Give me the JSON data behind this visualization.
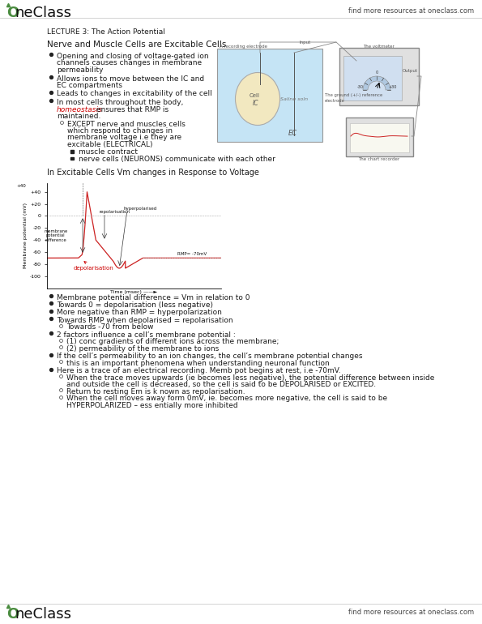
{
  "bg_color": "#ffffff",
  "header_right_text": "find more resources at oneclass.com",
  "footer_right_text": "find more resources at oneclass.com",
  "lecture_title": "LECTURE 3: The Action Potential",
  "section1_title": "Nerve and Muscle Cells are Excitable Cells",
  "bullet1": "Opening and closing of voltage-gated ion\nchannels causes changes in membrane\npermeability",
  "bullet2": "Allows ions to move between the IC and\nEC compartments",
  "bullet3": "Leads to changes in excitability of the cell",
  "bullet4_line1": "In most cells throughout the body,",
  "bullet4_red": "homeostasis",
  "bullet4_line2": " ensures that RMP is",
  "bullet4_line3": "maintained.",
  "sub_bullet1_lines": [
    "EXCEPT nerve and muscles cells",
    "which respond to changes in",
    "membrane voltage i.e they are",
    "excitable (ELECTRICAL)"
  ],
  "sub_sub1": "muscle contract",
  "sub_sub2": "nerve cells (NEURONS) communicate with each other",
  "section2_title": "In Excitable Cells Vm changes in Response to Voltage",
  "annotation_membrane": "membrane\npotential\ndifference",
  "annotation_repol": "repolarisation",
  "annotation_hyperpol": "hyperpolarised",
  "annotation_rmp": "RMP= -70mV",
  "annotation_depol": "depolarisation",
  "bullet_b1": "Membrane potential difference = Vm in relation to 0",
  "bullet_b2": "Towards 0 = depolarisation (less negative)",
  "bullet_b3": "More negative than RMP = hyperpolarization",
  "bullet_b4": "Towards RMP when depolarised = repolarisation",
  "bullet_b4_sub": "Towards -70 from below",
  "bullet_b5": "2 factors influence a cell’s membrane potential :",
  "bullet_b5_sub1": "(1) conc gradients of different ions across the membrane;",
  "bullet_b5_sub2": "(2) permeability of the membrane to ions",
  "bullet_b6": "If the cell’s permeability to an ion changes, the cell’s membrane potential changes",
  "bullet_b6_sub": "this is an important phenomena when understanding neuronal function",
  "bullet_b7": "Here is a trace of an electrical recording. Memb pot begins at rest, i.e -70mV.",
  "bullet_b7_sub1a": "When the trace moves upwards (ie becomes less negative), the potential difference between inside",
  "bullet_b7_sub1b": "and outside the cell is decreased, so the cell is said to be DEPOLARISED or EXCITED.",
  "bullet_b7_sub2": "Return to resting Em is k nown as repolarisation.",
  "bullet_b7_sub3a": "When the cell moves away form 0mV, ie. becomes more negative, the cell is said to be",
  "bullet_b7_sub3b": "HYPERPOLARIZED – ess entially more inhibited",
  "accent_color": "#cc0000",
  "logo_color": "#4a8c3f",
  "line_color": "#cc2222",
  "text_color": "#1a1a1a",
  "gray": "#888888"
}
